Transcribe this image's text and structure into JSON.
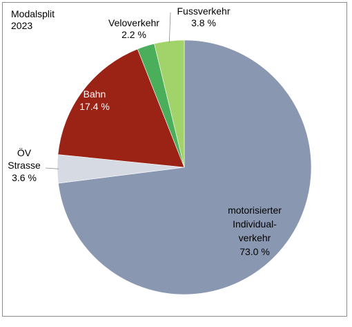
{
  "chart_data": {
    "type": "pie",
    "title": "Modalsplit",
    "subtitle": "2023",
    "unit": "%",
    "slices": [
      {
        "label": "motorisierter Individual-verkehr",
        "label_lines": [
          "motorisierter",
          "Individual-",
          "verkehr"
        ],
        "value": 73.0,
        "value_text": "73.0 %",
        "color": "#8a97b1",
        "text_color": "#000000"
      },
      {
        "label": "ÖV Strasse",
        "label_lines": [
          "ÖV",
          "Strasse"
        ],
        "value": 3.6,
        "value_text": "3.6 %",
        "color": "#d6dae3",
        "text_color": "#000000"
      },
      {
        "label": "Bahn",
        "label_lines": [
          "Bahn"
        ],
        "value": 17.4,
        "value_text": "17.4 %",
        "color": "#9b2316",
        "text_color": "#ffffff"
      },
      {
        "label": "Veloverkehr",
        "label_lines": [
          "Veloverkehr"
        ],
        "value": 2.2,
        "value_text": "2.2 %",
        "color": "#4aae5b",
        "text_color": "#000000"
      },
      {
        "label": "Fussverkehr",
        "label_lines": [
          "Fussverkehr"
        ],
        "value": 3.8,
        "value_text": "3.8 %",
        "color": "#a1d36a",
        "text_color": "#000000"
      }
    ],
    "start_angle": "12 o'clock",
    "direction": "clockwise",
    "legend": "none"
  }
}
